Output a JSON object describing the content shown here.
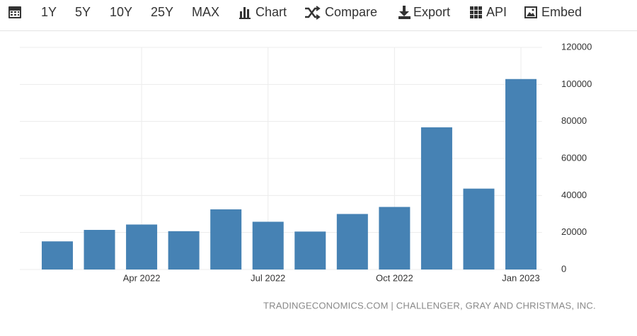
{
  "toolbar": [
    "1Y",
    "5Y",
    "10Y",
    "25Y",
    "MAX",
    "Chart",
    "Compare",
    "Export",
    "API",
    "Embed"
  ],
  "chart_data": {
    "type": "bar",
    "categories": [
      null,
      null,
      "Apr 2022",
      null,
      null,
      "Jul 2022",
      null,
      null,
      "Oct 2022",
      null,
      null,
      "Jan 2023"
    ],
    "values": [
      15200,
      21400,
      24300,
      20700,
      32500,
      25800,
      20500,
      30000,
      33800,
      76800,
      43700,
      102900
    ],
    "color": "#4682b4",
    "ylim": [
      0,
      120000
    ],
    "yticks": [
      0,
      20000,
      40000,
      60000,
      80000,
      100000,
      120000
    ],
    "grid": true,
    "source": "TRADINGECONOMICS.COM | CHALLENGER, GRAY AND CHRISTMAS, INC."
  }
}
